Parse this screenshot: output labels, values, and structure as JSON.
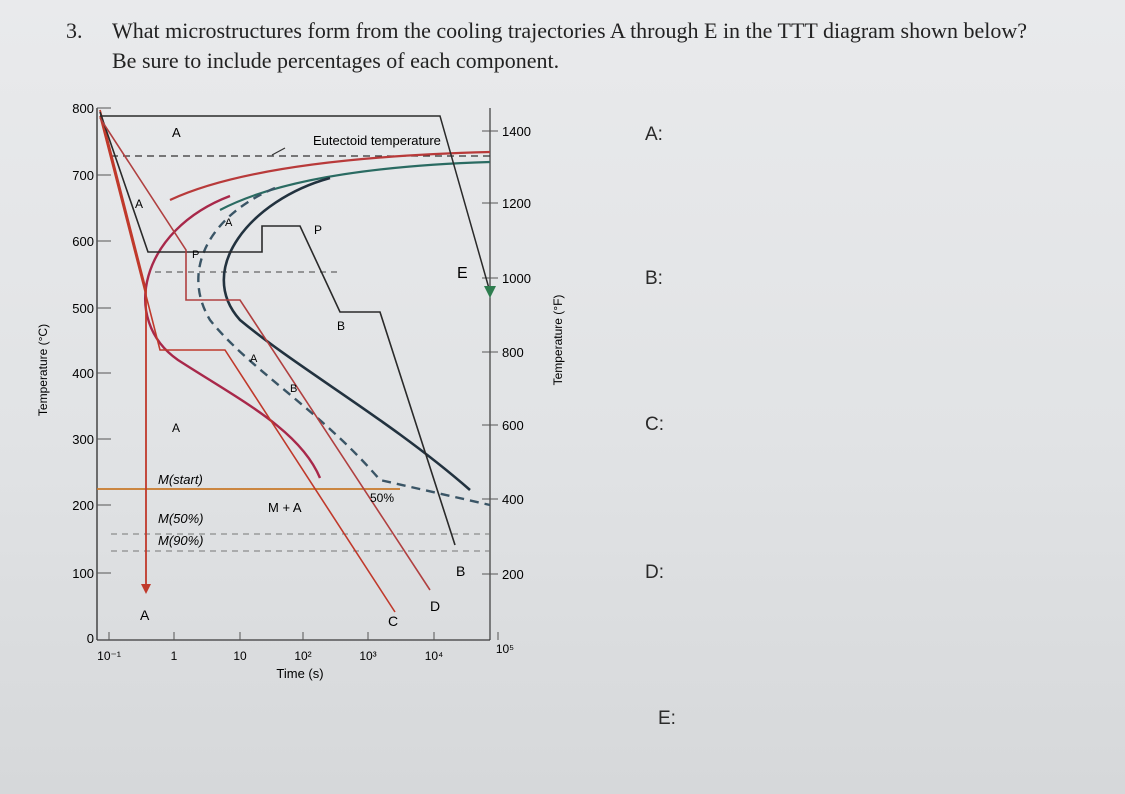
{
  "question": {
    "number": "3.",
    "text": "What microstructures form from the cooling trajectories A through E in the TTT diagram shown below? Be sure to include percentages of each component."
  },
  "diagram": {
    "y_axis_label_left": "Temperature (°C)",
    "y_axis_label_right": "Temperature (°F)",
    "x_axis_label": "Time (s)",
    "celsius_ticks": [
      "800",
      "700",
      "600",
      "500",
      "400",
      "300",
      "200",
      "100",
      "0"
    ],
    "fahrenheit_ticks": [
      "1400",
      "1200",
      "1000",
      "800",
      "600",
      "400",
      "200"
    ],
    "time_ticks": [
      "10⁻¹",
      "1",
      "10",
      "10²",
      "10³",
      "10⁴",
      "10⁵"
    ],
    "eutectoid_label": "Eutectoid temperature",
    "region_labels": {
      "austenite_top": "A",
      "austenite_curve": "A",
      "pearlite_start": "P",
      "pearlite": "P",
      "austenite_mid": "A",
      "austenite_plus_bainite_a": "A",
      "austenite_plus_bainite_b": "B",
      "bainite": "B",
      "austenite_low": "A",
      "m_start": "M(start)",
      "m_50": "M(50%)",
      "m_90": "M(90%)",
      "m_plus_a": "M + A",
      "fifty_percent": "50%"
    },
    "trajectory_labels": {
      "a": "A",
      "b": "B",
      "c": "C",
      "d": "D",
      "e": "E"
    },
    "colors": {
      "trajectory_red": "#c0392b",
      "trajectory_black": "#2a2a2a",
      "start_curve": "#a8284a",
      "finish_curve": "#22323f",
      "fifty_curve": "#3a5566",
      "ms_line": "#c8782a",
      "eutectoid_line": "#c0392b",
      "trajectory_e_arrow": "#2e7d4f"
    }
  },
  "answers": [
    "A:",
    "B:",
    "C:",
    "D:",
    "E:"
  ]
}
